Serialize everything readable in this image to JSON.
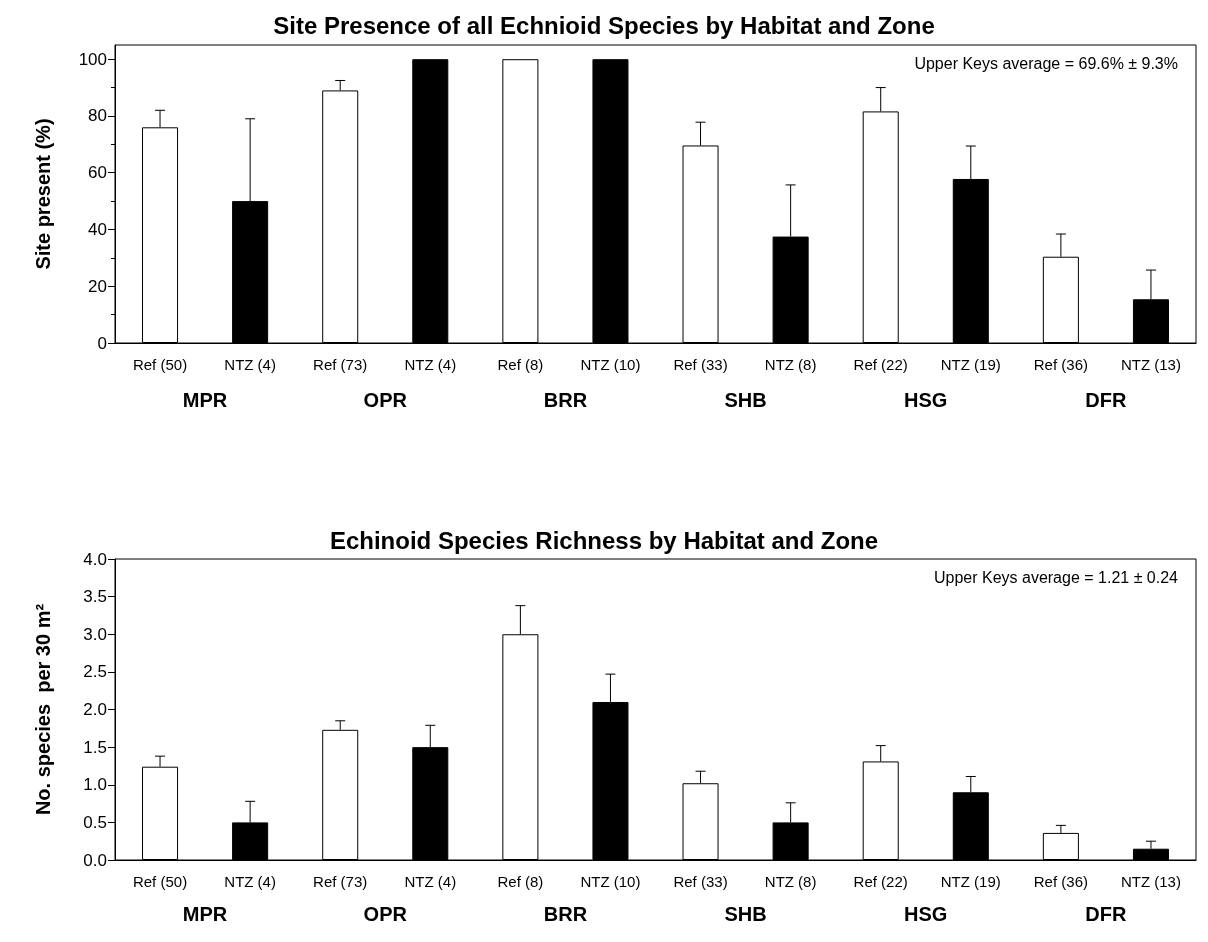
{
  "chart_data": [
    {
      "type": "bar",
      "title": "Site Presence of all Echnioid Species by Habitat and Zone",
      "ylabel": "Site present (%)",
      "categories": [
        "Ref (50)",
        "NTZ (4)",
        "Ref (73)",
        "NTZ (4)",
        "Ref (8)",
        "NTZ (10)",
        "Ref (33)",
        "NTZ (8)",
        "Ref (22)",
        "NTZ (19)",
        "Ref (36)",
        "NTZ (13)"
      ],
      "values": [
        76,
        50,
        89,
        100,
        100,
        100,
        69.6,
        37.5,
        81.6,
        57.8,
        30.4,
        15.4
      ],
      "errors": [
        [
          76,
          82
        ],
        [
          50,
          79
        ],
        [
          89,
          92.5
        ],
        null,
        null,
        null,
        [
          69.6,
          77.8
        ],
        [
          37.5,
          55.7
        ],
        [
          81.6,
          90
        ],
        [
          57.8,
          69.4
        ],
        [
          30.4,
          38.4
        ],
        [
          15.4,
          25.7
        ]
      ],
      "colors": [
        "#ffffff",
        "#000000",
        "#ffffff",
        "#000000",
        "#ffffff",
        "#000000",
        "#ffffff",
        "#000000",
        "#ffffff",
        "#000000",
        "#ffffff",
        "#000000"
      ],
      "ylim": [
        0,
        105
      ],
      "yticks": [
        0,
        20,
        40,
        60,
        80,
        100
      ],
      "grid": false,
      "annotations": [
        "Upper Keys average = 69.6% ± 9.3%",
        "MPR",
        "OPR",
        "BRR",
        "SHB",
        "HSG",
        "DFR"
      ]
    },
    {
      "type": "bar",
      "title": "Echinoid Species Richness by Habitat and Zone",
      "ylabel": "No. species  per 30 m²",
      "categories": [
        "Ref (50)",
        "NTZ (4)",
        "Ref (73)",
        "NTZ (4)",
        "Ref (8)",
        "NTZ (10)",
        "Ref (33)",
        "NTZ (8)",
        "Ref (22)",
        "NTZ (19)",
        "Ref (36)",
        "NTZ (13)"
      ],
      "values": [
        1.24,
        0.5,
        1.73,
        1.5,
        3.0,
        2.1,
        1.02,
        0.5,
        1.31,
        0.9,
        0.36,
        0.15
      ],
      "errors": [
        [
          1.24,
          1.38
        ],
        [
          0.5,
          0.78
        ],
        [
          1.73,
          1.85
        ],
        [
          1.5,
          1.79
        ],
        [
          3.0,
          3.38
        ],
        [
          2.1,
          2.47
        ],
        [
          1.02,
          1.18
        ],
        [
          0.5,
          0.76
        ],
        [
          1.31,
          1.52
        ],
        [
          0.9,
          1.11
        ],
        [
          0.36,
          0.46
        ],
        [
          0.15,
          0.25
        ]
      ],
      "colors": [
        "#ffffff",
        "#000000",
        "#ffffff",
        "#000000",
        "#ffffff",
        "#000000",
        "#ffffff",
        "#000000",
        "#ffffff",
        "#000000",
        "#ffffff",
        "#000000"
      ],
      "ylim": [
        0,
        4
      ],
      "yticks": [
        {
          "value": 0,
          "label": "0.0"
        },
        0.5,
        {
          "value": 1,
          "label": "1.0"
        },
        1.5,
        {
          "value": 2,
          "label": "2.0"
        },
        2.5,
        {
          "value": 3,
          "label": "3.0"
        },
        3.5,
        {
          "value": 4,
          "label": "4.0"
        }
      ],
      "grid": false,
      "annotations": [
        "Upper Keys average = 1.21 ± 0.24",
        "MPR",
        "OPR",
        "BRR",
        "SHB",
        "HSG",
        "DFR"
      ]
    }
  ]
}
